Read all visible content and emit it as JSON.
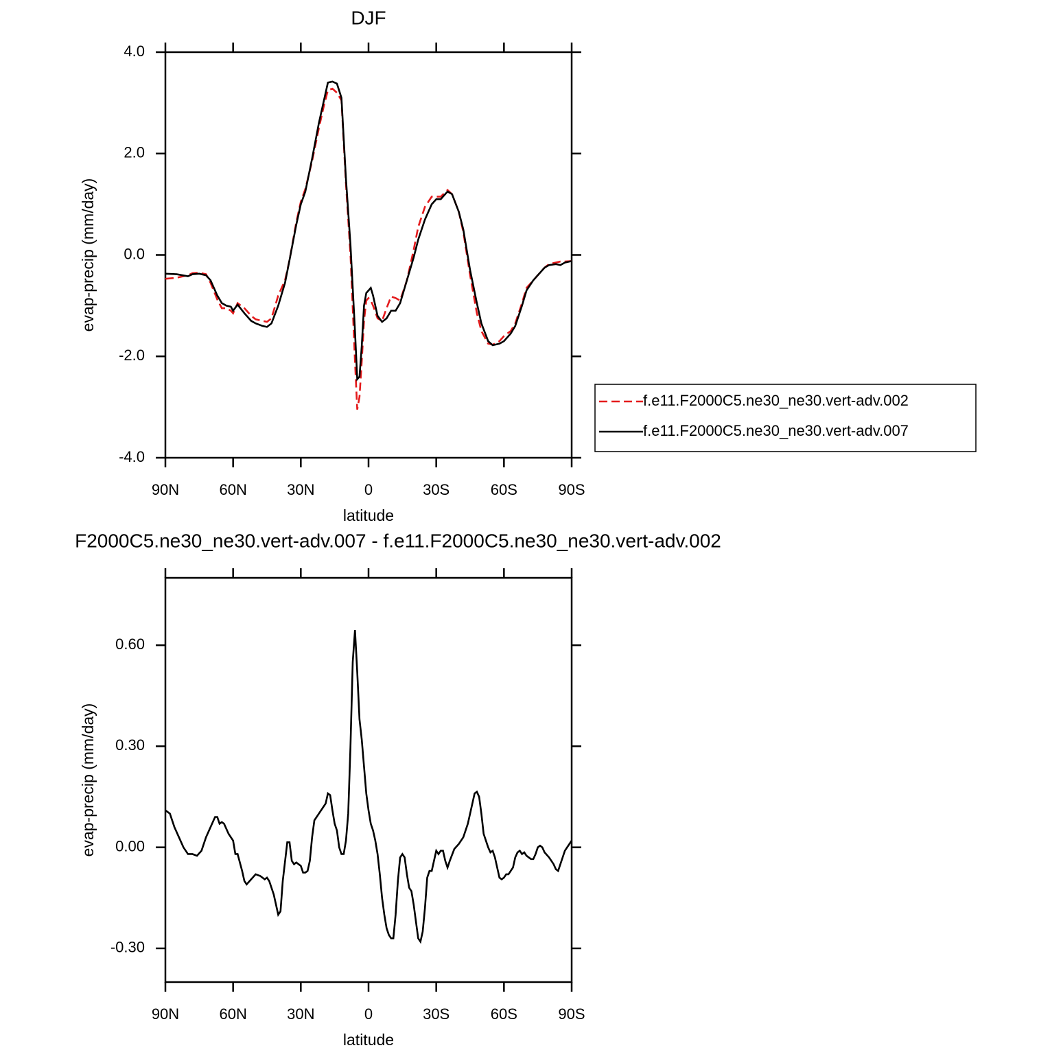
{
  "chart_data": [
    {
      "type": "line",
      "title": "DJF",
      "xlabel": "latitude",
      "ylabel": "evap-precip (mm/day)",
      "x": [
        90,
        85,
        80,
        78,
        75,
        72,
        70,
        67,
        65,
        63,
        61,
        60,
        58,
        55,
        52,
        50,
        47,
        45,
        43,
        40,
        37,
        35,
        32,
        30,
        28,
        25,
        22,
        20,
        18,
        16,
        14,
        12,
        10,
        8,
        6,
        5,
        4,
        3,
        2,
        1,
        0,
        -1,
        -2,
        -4,
        -6,
        -8,
        -10,
        -12,
        -14,
        -17,
        -20,
        -22,
        -25,
        -28,
        -30,
        -32,
        -35,
        -37,
        -40,
        -42,
        -45,
        -48,
        -50,
        -53,
        -55,
        -58,
        -60,
        -63,
        -65,
        -68,
        -70,
        -73,
        -75,
        -78,
        -80,
        -83,
        -85,
        -87,
        -90
      ],
      "series": [
        {
          "name": "f.e11.F2000C5.ne30_ne30.vert-adv.002",
          "color": "#e41a1c",
          "dash": "dashed",
          "values": [
            -0.47,
            -0.45,
            -0.4,
            -0.36,
            -0.35,
            -0.38,
            -0.55,
            -0.88,
            -1.05,
            -1.05,
            -1.1,
            -1.15,
            -0.95,
            -1.05,
            -1.2,
            -1.27,
            -1.3,
            -1.32,
            -1.25,
            -0.8,
            -0.5,
            -0.1,
            0.65,
            1.05,
            1.3,
            1.85,
            2.5,
            2.9,
            3.25,
            3.28,
            3.2,
            3.05,
            1.4,
            0.0,
            -2.1,
            -3.05,
            -2.8,
            -2.1,
            -1.3,
            -0.9,
            -0.85,
            -0.9,
            -1.0,
            -1.25,
            -1.3,
            -1.05,
            -0.82,
            -0.85,
            -0.9,
            -0.5,
            0.1,
            0.55,
            0.95,
            1.15,
            1.15,
            1.15,
            1.28,
            1.2,
            0.85,
            0.45,
            -0.4,
            -1.15,
            -1.5,
            -1.75,
            -1.77,
            -1.7,
            -1.6,
            -1.5,
            -1.35,
            -0.95,
            -0.65,
            -0.5,
            -0.4,
            -0.25,
            -0.18,
            -0.15,
            -0.13,
            -0.13,
            -0.12
          ]
        },
        {
          "name": "f.e11.F2000C5.ne30_ne30.vert-adv.007",
          "color": "#000000",
          "dash": "solid",
          "values": [
            -0.37,
            -0.38,
            -0.42,
            -0.38,
            -0.37,
            -0.4,
            -0.5,
            -0.8,
            -0.95,
            -1.0,
            -1.02,
            -1.1,
            -0.98,
            -1.15,
            -1.3,
            -1.35,
            -1.4,
            -1.42,
            -1.35,
            -1.0,
            -0.55,
            -0.1,
            0.6,
            1.0,
            1.25,
            1.9,
            2.6,
            3.0,
            3.4,
            3.42,
            3.38,
            3.1,
            1.5,
            0.2,
            -1.5,
            -2.45,
            -2.4,
            -1.8,
            -1.0,
            -0.75,
            -0.7,
            -0.65,
            -0.8,
            -1.2,
            -1.32,
            -1.25,
            -1.1,
            -1.1,
            -0.95,
            -0.5,
            -0.05,
            0.3,
            0.7,
            1.0,
            1.1,
            1.1,
            1.25,
            1.2,
            0.85,
            0.5,
            -0.3,
            -0.95,
            -1.35,
            -1.7,
            -1.78,
            -1.75,
            -1.7,
            -1.55,
            -1.4,
            -1.0,
            -0.7,
            -0.5,
            -0.4,
            -0.25,
            -0.2,
            -0.18,
            -0.2,
            -0.15,
            -0.12
          ]
        }
      ],
      "xlim": [
        90,
        -90
      ],
      "xticks": [
        {
          "value": 90,
          "label": "90N"
        },
        {
          "value": 60,
          "label": "60N"
        },
        {
          "value": 30,
          "label": "30N"
        },
        0,
        {
          "value": -30,
          "label": "30S"
        },
        {
          "value": -60,
          "label": "60S"
        },
        {
          "value": -90,
          "label": "90S"
        }
      ],
      "ylim": [
        -4,
        4
      ],
      "yticks": [
        {
          "value": -4,
          "label": "-4.0"
        },
        {
          "value": -2,
          "label": "-2.0"
        },
        {
          "value": 0,
          "label": "0.0"
        },
        {
          "value": 2,
          "label": "2.0"
        },
        {
          "value": 4,
          "label": "4.0"
        }
      ],
      "legend": "right"
    },
    {
      "type": "line",
      "title": "F2000C5.ne30_ne30.vert-adv.007 - f.e11.F2000C5.ne30_ne30.vert-adv.002",
      "xlabel": "latitude",
      "ylabel": "evap-precip (mm/day)",
      "x": [
        90,
        88,
        86,
        84,
        82,
        80,
        78,
        76,
        74,
        72,
        70,
        68,
        67,
        66,
        65,
        64,
        62,
        60,
        59,
        58,
        56,
        55,
        54,
        52,
        50,
        48,
        46,
        45,
        44,
        42,
        40,
        39,
        38,
        36,
        35,
        34,
        33,
        32,
        30,
        29,
        28,
        27,
        26,
        25,
        24,
        22,
        20,
        19,
        18,
        17,
        16,
        15,
        14,
        13,
        12,
        11,
        10,
        9,
        8,
        7,
        6,
        5,
        4,
        3,
        2,
        1,
        0,
        -1,
        -2,
        -3,
        -4,
        -5,
        -6,
        -7,
        -8,
        -9,
        -10,
        -11,
        -12,
        -13,
        -14,
        -15,
        -16,
        -17,
        -18,
        -19,
        -20,
        -21,
        -22,
        -23,
        -24,
        -25,
        -26,
        -27,
        -28,
        -29,
        -30,
        -31,
        -32,
        -33,
        -34,
        -35,
        -36,
        -38,
        -40,
        -42,
        -44,
        -46,
        -47,
        -48,
        -49,
        -50,
        -51,
        -52,
        -53,
        -54,
        -55,
        -56,
        -57,
        -58,
        -59,
        -60,
        -61,
        -62,
        -64,
        -65,
        -66,
        -67,
        -68,
        -69,
        -70,
        -72,
        -73,
        -74,
        -75,
        -76,
        -77,
        -78,
        -80,
        -82,
        -83,
        -84,
        -85,
        -86,
        -87,
        -89,
        -90
      ],
      "series": [
        {
          "color": "#000000",
          "dash": "solid",
          "values": [
            0.11,
            0.1,
            0.06,
            0.03,
            0.0,
            -0.02,
            -0.02,
            -0.025,
            -0.01,
            0.03,
            0.06,
            0.09,
            0.09,
            0.07,
            0.075,
            0.07,
            0.04,
            0.02,
            -0.02,
            -0.02,
            -0.07,
            -0.1,
            -0.11,
            -0.095,
            -0.08,
            -0.085,
            -0.095,
            -0.09,
            -0.1,
            -0.14,
            -0.2,
            -0.19,
            -0.1,
            0.015,
            0.015,
            -0.04,
            -0.05,
            -0.045,
            -0.055,
            -0.075,
            -0.075,
            -0.07,
            -0.04,
            0.03,
            0.08,
            0.1,
            0.12,
            0.13,
            0.16,
            0.155,
            0.11,
            0.07,
            0.05,
            0.0,
            -0.02,
            -0.02,
            0.02,
            0.1,
            0.3,
            0.55,
            0.645,
            0.52,
            0.38,
            0.32,
            0.24,
            0.16,
            0.11,
            0.07,
            0.05,
            0.02,
            -0.02,
            -0.08,
            -0.15,
            -0.2,
            -0.24,
            -0.26,
            -0.27,
            -0.27,
            -0.2,
            -0.1,
            -0.03,
            -0.02,
            -0.03,
            -0.08,
            -0.12,
            -0.13,
            -0.17,
            -0.22,
            -0.27,
            -0.28,
            -0.25,
            -0.18,
            -0.09,
            -0.07,
            -0.07,
            -0.04,
            -0.01,
            -0.02,
            -0.01,
            -0.01,
            -0.04,
            -0.06,
            -0.04,
            -0.005,
            0.01,
            0.03,
            0.07,
            0.13,
            0.16,
            0.165,
            0.15,
            0.1,
            0.04,
            0.02,
            0.0,
            -0.015,
            -0.01,
            -0.03,
            -0.06,
            -0.09,
            -0.095,
            -0.09,
            -0.08,
            -0.08,
            -0.06,
            -0.03,
            -0.015,
            -0.01,
            -0.02,
            -0.015,
            -0.025,
            -0.035,
            -0.035,
            -0.02,
            0.0,
            0.005,
            0.0,
            -0.015,
            -0.03,
            -0.05,
            -0.065,
            -0.07,
            -0.05,
            -0.03,
            -0.01,
            0.01,
            0.02
          ]
        }
      ],
      "xlim": [
        90,
        -90
      ],
      "xticks": [
        {
          "value": 90,
          "label": "90N"
        },
        {
          "value": 60,
          "label": "60N"
        },
        {
          "value": 30,
          "label": "30N"
        },
        0,
        {
          "value": -30,
          "label": "30S"
        },
        {
          "value": -60,
          "label": "60S"
        },
        {
          "value": -90,
          "label": "90S"
        }
      ],
      "ylim": [
        -0.4,
        0.8
      ],
      "yticks": [
        {
          "value": -0.3,
          "label": "-0.30"
        },
        {
          "value": 0,
          "label": "0.00"
        },
        {
          "value": 0.3,
          "label": "0.30"
        },
        {
          "value": 0.6,
          "label": "0.60"
        }
      ]
    }
  ]
}
